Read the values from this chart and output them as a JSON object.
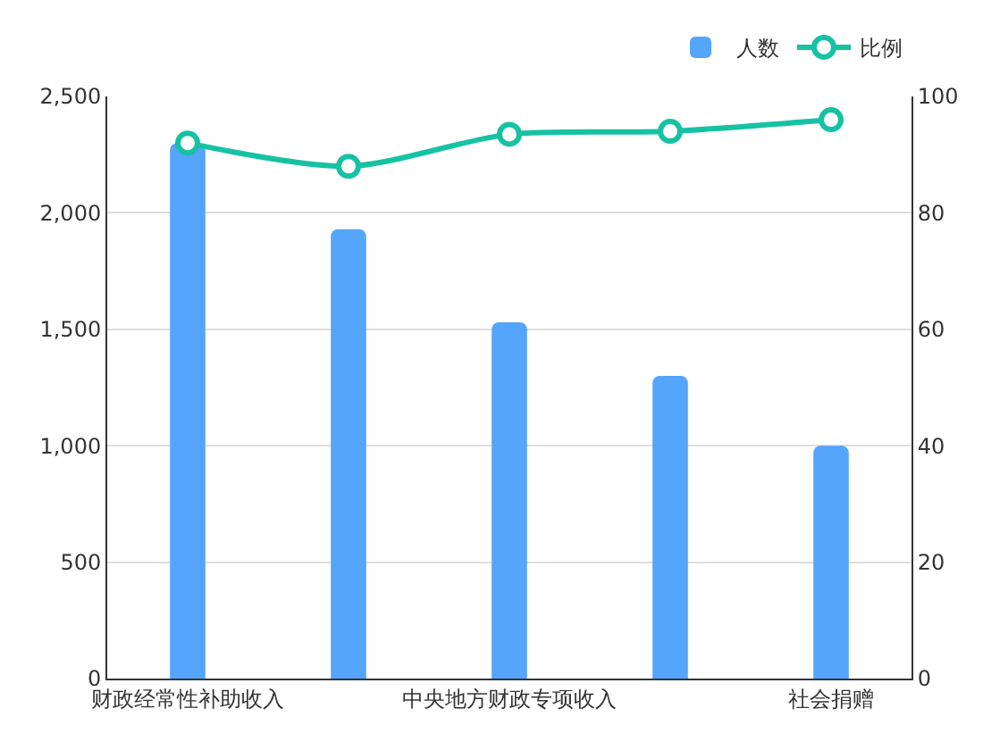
{
  "chart_data": {
    "type": "bar",
    "categories": [
      "财政经常性补助收入",
      null,
      "中央地方财政专项收入",
      null,
      "社会捐赠"
    ],
    "series": [
      {
        "name": "人数",
        "color": "#54a5fb",
        "values": [
          2300,
          1930,
          1530,
          1300,
          1000
        ]
      },
      {
        "name": "比例",
        "type": "line",
        "axis": "y2",
        "color": "#16c2a3",
        "values": [
          92,
          88,
          93.5,
          94,
          96
        ]
      }
    ],
    "ylim": [
      0,
      2500
    ],
    "yticks": [
      0,
      500,
      {
        "value": 1000,
        "label": "1,000"
      },
      {
        "value": 1500,
        "label": "1,500"
      },
      {
        "value": 2000,
        "label": "2,000"
      },
      {
        "value": 2500,
        "label": "2,500"
      }
    ],
    "y2lim": [
      0,
      100
    ],
    "y2ticks": [
      0,
      20,
      40,
      60,
      80,
      100
    ],
    "grid": "y",
    "legend": "top right",
    "marker": "circle"
  }
}
